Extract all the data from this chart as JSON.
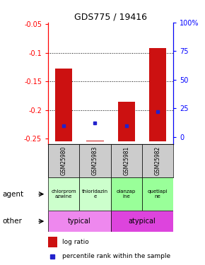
{
  "title": "GDS775 / 19416",
  "samples": [
    "GSM25980",
    "GSM25983",
    "GSM25981",
    "GSM25982"
  ],
  "log_ratios": [
    -0.127,
    -0.253,
    -0.185,
    -0.092
  ],
  "percentile_ranks": [
    10,
    12,
    10,
    22
  ],
  "y_min": -0.26,
  "y_max": -0.047,
  "y_ticks_left": [
    -0.05,
    -0.1,
    -0.15,
    -0.2,
    -0.25
  ],
  "y_ticks_right_vals": [
    100,
    75,
    50,
    25,
    0
  ],
  "y_ticks_right_pos": [
    -0.047,
    -0.097,
    -0.147,
    -0.197,
    -0.247
  ],
  "bar_color": "#cc1111",
  "percentile_color": "#2222cc",
  "agent_texts": [
    "chlorprom\nazwine",
    "thioridazin\ne",
    "olanzap\nine",
    "quetiapi\nne"
  ],
  "agent_colors_left": [
    "#ccffcc",
    "#ccffcc"
  ],
  "agent_colors_right": [
    "#99ff99",
    "#99ff99"
  ],
  "typical_color": "#ee88ee",
  "atypical_color": "#dd44dd",
  "sample_bg": "#cccccc",
  "bar_bottom": -0.255,
  "bar_width": 0.55,
  "hlines": [
    -0.1,
    -0.15,
    -0.2
  ],
  "legend_bar_label": "log ratio",
  "legend_pct_label": "percentile rank within the sample"
}
